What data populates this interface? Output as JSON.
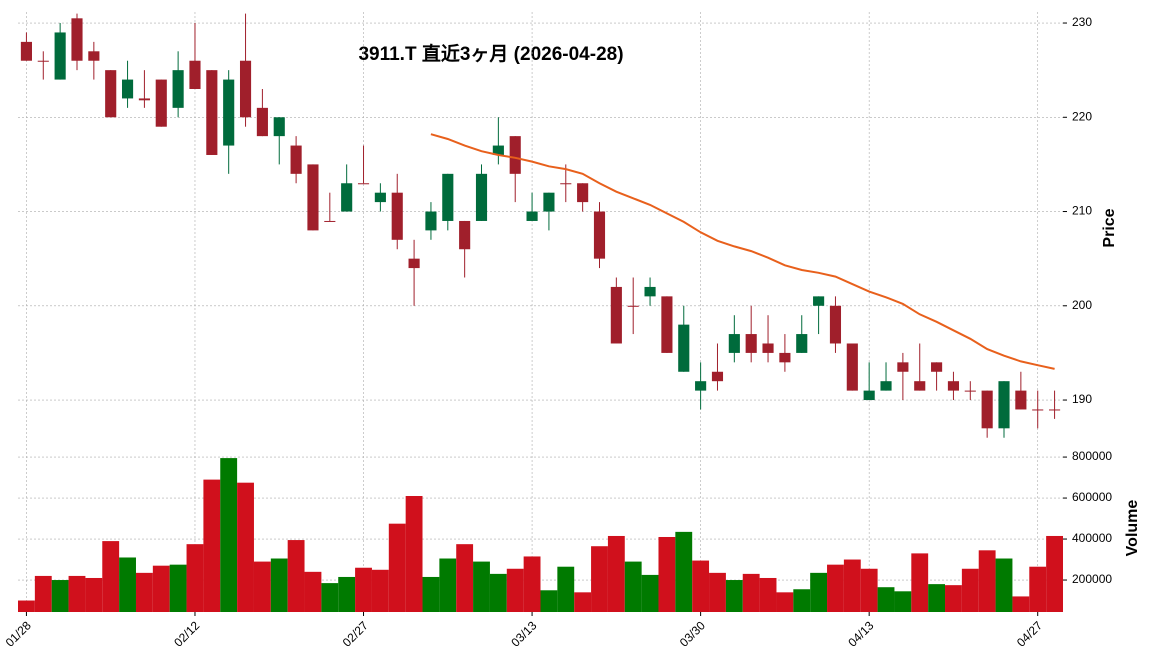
{
  "chart_data": {
    "type": "candlestick",
    "title": "3911.T  直近3ヶ月  (2026-04-28)",
    "ylabel": "Price",
    "categories": [
      "01/28",
      null,
      null,
      null,
      null,
      null,
      null,
      null,
      null,
      null,
      "02/12",
      null,
      null,
      null,
      null,
      null,
      null,
      null,
      null,
      null,
      "02/27",
      null,
      null,
      null,
      null,
      null,
      null,
      null,
      null,
      null,
      "03/13",
      null,
      null,
      null,
      null,
      null,
      null,
      null,
      null,
      null,
      "03/30",
      null,
      null,
      null,
      null,
      null,
      null,
      null,
      null,
      null,
      "04/13",
      null,
      null,
      null,
      null,
      null,
      null,
      null,
      null,
      null,
      "04/27",
      null
    ],
    "open": [
      228,
      226,
      224,
      230.5,
      227,
      225,
      222,
      222,
      224,
      221,
      226,
      225,
      217,
      226,
      221,
      218,
      217,
      215,
      209,
      210,
      213,
      211,
      212,
      205,
      208,
      209,
      209,
      209,
      216,
      218,
      209,
      210,
      213,
      213,
      210,
      202,
      200,
      201,
      201,
      193,
      191,
      193,
      195,
      197,
      196,
      195,
      195,
      200,
      200,
      196,
      190,
      191,
      194,
      192,
      194,
      192,
      191,
      191,
      187,
      191,
      189,
      189
    ],
    "high": [
      229,
      227,
      230,
      231,
      228,
      225,
      226,
      225,
      224,
      227,
      230,
      225,
      225,
      231,
      223,
      220,
      218,
      215,
      212,
      215,
      217,
      213,
      214,
      207,
      211,
      214,
      209,
      215,
      220,
      218,
      212,
      212,
      215,
      213,
      211,
      203,
      203,
      203,
      201,
      200,
      194,
      196,
      199,
      200,
      199,
      197,
      199,
      201,
      201,
      196,
      194,
      194,
      195,
      196,
      194,
      193,
      192,
      191,
      192,
      193,
      191,
      191
    ],
    "low": [
      226,
      224,
      224,
      225,
      224,
      220,
      221,
      221,
      219,
      220,
      223,
      216,
      214,
      219,
      218,
      215,
      213,
      208,
      209,
      210,
      213,
      210,
      206,
      200,
      207,
      208,
      203,
      209,
      215,
      211,
      209,
      208,
      211,
      210,
      204,
      196,
      197,
      200,
      195,
      193,
      189,
      191,
      194,
      194,
      194,
      193,
      195,
      197,
      195,
      191,
      190,
      191,
      190,
      191,
      191,
      190,
      190,
      186,
      186,
      189,
      187,
      188
    ],
    "close": [
      226,
      226,
      229,
      226,
      226,
      220,
      224,
      221.8,
      219,
      225,
      223,
      216,
      224,
      220,
      218,
      220,
      214,
      208,
      209,
      213,
      212.9,
      212,
      207,
      204,
      210,
      214,
      206,
      214,
      217,
      214,
      210,
      212,
      212.9,
      211,
      205,
      196,
      199.9,
      202,
      195,
      198,
      192,
      192,
      197,
      195,
      195,
      194,
      197,
      201,
      196,
      191,
      191,
      192,
      193,
      191,
      193,
      191,
      190.9,
      187,
      192,
      189,
      188.9,
      188.9
    ],
    "up_color": "#006b3c",
    "down_color": "#a01f2b",
    "ylim": [
      185.76,
      231.17
    ],
    "yticks": [
      190,
      200,
      210,
      220,
      230
    ],
    "grid": true,
    "ma": {
      "color": "#e8601c",
      "values": [
        null,
        null,
        null,
        null,
        null,
        null,
        null,
        null,
        null,
        null,
        null,
        null,
        null,
        null,
        null,
        null,
        null,
        null,
        null,
        null,
        null,
        null,
        null,
        null,
        218.2,
        217.7,
        217.0,
        216.4,
        216.0,
        215.7,
        215.3,
        214.8,
        214.5,
        214.0,
        213.0,
        212.1,
        211.4,
        210.7,
        209.8,
        208.9,
        207.8,
        206.9,
        206.3,
        205.8,
        205.1,
        204.3,
        203.8,
        203.5,
        203.1,
        202.3,
        201.5,
        200.9,
        200.2,
        199.1,
        198.3,
        197.4,
        196.5,
        195.4,
        194.7,
        194.1,
        193.7,
        193.3
      ]
    },
    "volume": {
      "label": "Volume",
      "up_color": "#007a00",
      "down_color": "#d0101c",
      "ylim": [
        44000,
        854000
      ],
      "yticks": [
        200000,
        400000,
        600000,
        800000
      ],
      "values": [
        100000,
        220000,
        200000,
        220000,
        210000,
        390000,
        310000,
        235000,
        270000,
        275000,
        375000,
        690000,
        795000,
        675000,
        290000,
        305000,
        395000,
        240000,
        185000,
        215000,
        260000,
        250000,
        475000,
        610000,
        215000,
        305000,
        375000,
        290000,
        230000,
        255000,
        315000,
        150000,
        265000,
        140000,
        365000,
        415000,
        290000,
        225000,
        410000,
        435000,
        295000,
        235000,
        200000,
        230000,
        210000,
        140000,
        155000,
        235000,
        275000,
        300000,
        255000,
        165000,
        145000,
        330000,
        180000,
        175000,
        255000,
        345000,
        305000,
        120000,
        265000,
        415000
      ]
    }
  }
}
